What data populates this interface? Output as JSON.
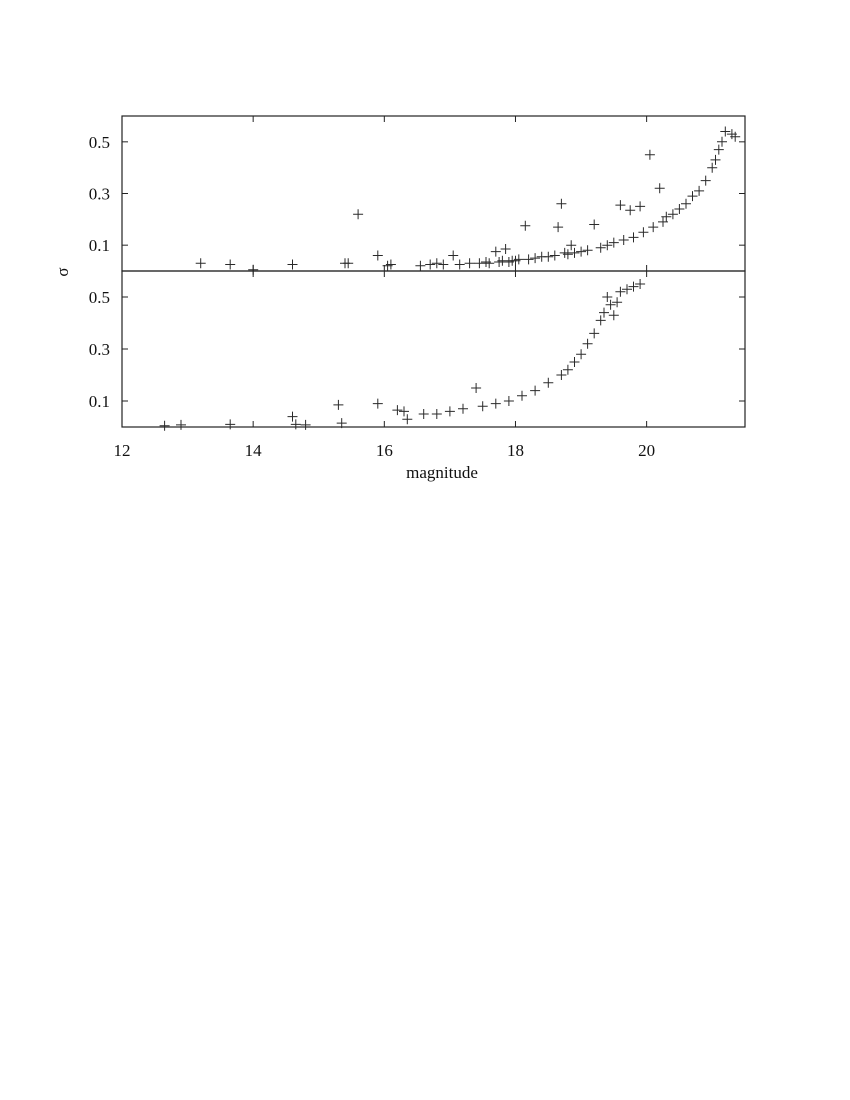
{
  "chart_data": [
    {
      "type": "scatter",
      "panel": "top",
      "xlim": [
        12,
        21.5
      ],
      "ylim": [
        0,
        0.6
      ],
      "y_ticks": [
        0.1,
        0.3,
        0.5
      ],
      "y_tick_labels": [
        "0.1",
        "0.3",
        "0.5"
      ],
      "ylabel": "σ",
      "marker": "plus",
      "grid": false,
      "points": [
        [
          13.2,
          0.03
        ],
        [
          13.65,
          0.025
        ],
        [
          14,
          0.005
        ],
        [
          14.6,
          0.025
        ],
        [
          15.4,
          0.03
        ],
        [
          15.45,
          0.03
        ],
        [
          15.6,
          0.22
        ],
        [
          15.9,
          0.06
        ],
        [
          16.05,
          0.02
        ],
        [
          16.1,
          0.025
        ],
        [
          16.55,
          0.02
        ],
        [
          16.7,
          0.025
        ],
        [
          16.8,
          0.03
        ],
        [
          16.9,
          0.025
        ],
        [
          17.05,
          0.06
        ],
        [
          17.15,
          0.025
        ],
        [
          17.3,
          0.03
        ],
        [
          17.45,
          0.03
        ],
        [
          17.55,
          0.035
        ],
        [
          17.6,
          0.03
        ],
        [
          17.7,
          0.075
        ],
        [
          17.75,
          0.035
        ],
        [
          17.8,
          0.04
        ],
        [
          17.85,
          0.085
        ],
        [
          17.9,
          0.035
        ],
        [
          17.95,
          0.04
        ],
        [
          18.0,
          0.04
        ],
        [
          18.05,
          0.045
        ],
        [
          18.15,
          0.175
        ],
        [
          18.2,
          0.045
        ],
        [
          18.3,
          0.05
        ],
        [
          18.4,
          0.055
        ],
        [
          18.5,
          0.055
        ],
        [
          18.6,
          0.06
        ],
        [
          18.65,
          0.17
        ],
        [
          18.7,
          0.26
        ],
        [
          18.75,
          0.07
        ],
        [
          18.8,
          0.065
        ],
        [
          18.85,
          0.1
        ],
        [
          18.9,
          0.07
        ],
        [
          19.0,
          0.075
        ],
        [
          19.1,
          0.08
        ],
        [
          19.2,
          0.18
        ],
        [
          19.3,
          0.09
        ],
        [
          19.4,
          0.1
        ],
        [
          19.5,
          0.11
        ],
        [
          19.6,
          0.255
        ],
        [
          19.65,
          0.12
        ],
        [
          19.75,
          0.235
        ],
        [
          19.8,
          0.13
        ],
        [
          19.9,
          0.25
        ],
        [
          19.95,
          0.15
        ],
        [
          20.05,
          0.45
        ],
        [
          20.1,
          0.17
        ],
        [
          20.2,
          0.32
        ],
        [
          20.25,
          0.19
        ],
        [
          20.3,
          0.21
        ],
        [
          20.4,
          0.22
        ],
        [
          20.5,
          0.24
        ],
        [
          20.6,
          0.26
        ],
        [
          20.7,
          0.29
        ],
        [
          20.8,
          0.31
        ],
        [
          20.9,
          0.35
        ],
        [
          21.0,
          0.4
        ],
        [
          21.05,
          0.43
        ],
        [
          21.1,
          0.47
        ],
        [
          21.15,
          0.5
        ],
        [
          21.2,
          0.54
        ],
        [
          21.3,
          0.53
        ],
        [
          21.35,
          0.52
        ]
      ]
    },
    {
      "type": "scatter",
      "panel": "bottom",
      "xlim": [
        12,
        21.5
      ],
      "ylim": [
        0,
        0.6
      ],
      "x_ticks": [
        12,
        14,
        16,
        18,
        20
      ],
      "x_tick_labels": [
        "12",
        "14",
        "16",
        "18",
        "20"
      ],
      "y_ticks": [
        0.1,
        0.3,
        0.5
      ],
      "y_tick_labels": [
        "0.1",
        "0.3",
        "0.5"
      ],
      "xlabel": "magnitude",
      "marker": "plus",
      "grid": false,
      "points": [
        [
          12.65,
          0.005
        ],
        [
          12.9,
          0.008
        ],
        [
          13.65,
          0.01
        ],
        [
          14.6,
          0.04
        ],
        [
          14.65,
          0.01
        ],
        [
          14.8,
          0.008
        ],
        [
          15.3,
          0.085
        ],
        [
          15.35,
          0.015
        ],
        [
          15.9,
          0.09
        ],
        [
          16.2,
          0.065
        ],
        [
          16.3,
          0.06
        ],
        [
          16.35,
          0.03
        ],
        [
          16.6,
          0.05
        ],
        [
          16.8,
          0.05
        ],
        [
          17.0,
          0.06
        ],
        [
          17.2,
          0.07
        ],
        [
          17.4,
          0.15
        ],
        [
          17.5,
          0.08
        ],
        [
          17.7,
          0.09
        ],
        [
          17.9,
          0.1
        ],
        [
          18.1,
          0.12
        ],
        [
          18.3,
          0.14
        ],
        [
          18.5,
          0.17
        ],
        [
          18.7,
          0.2
        ],
        [
          18.8,
          0.22
        ],
        [
          18.9,
          0.25
        ],
        [
          19.0,
          0.28
        ],
        [
          19.1,
          0.32
        ],
        [
          19.2,
          0.36
        ],
        [
          19.3,
          0.41
        ],
        [
          19.35,
          0.44
        ],
        [
          19.4,
          0.5
        ],
        [
          19.45,
          0.47
        ],
        [
          19.5,
          0.43
        ],
        [
          19.55,
          0.48
        ],
        [
          19.6,
          0.52
        ],
        [
          19.7,
          0.53
        ],
        [
          19.8,
          0.54
        ],
        [
          19.9,
          0.55
        ]
      ]
    }
  ]
}
